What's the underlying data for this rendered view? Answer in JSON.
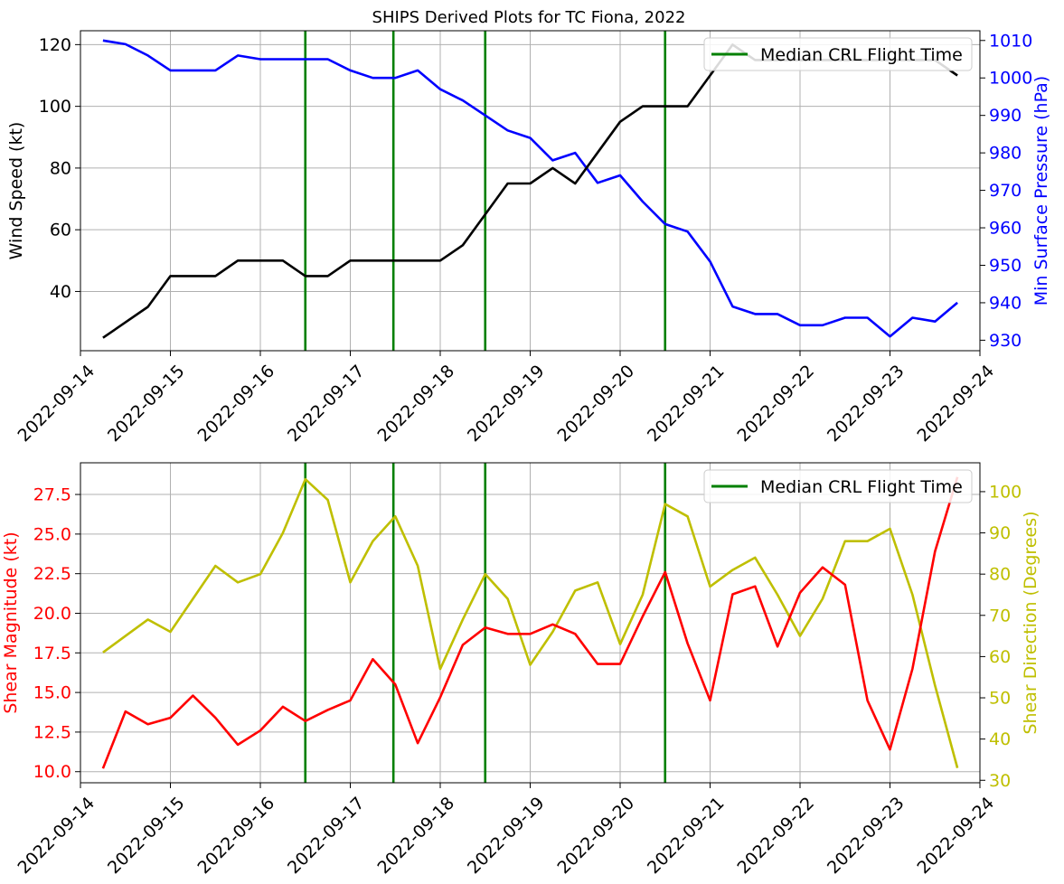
{
  "title": "SHIPS Derived Plots for TC Fiona, 2022",
  "chart_data": [
    {
      "type": "line",
      "title": "SHIPS Derived Plots for TC Fiona, 2022",
      "x_ticks": [
        "2022-09-14",
        "2022-09-15",
        "2022-09-16",
        "2022-09-17",
        "2022-09-18",
        "2022-09-19",
        "2022-09-20",
        "2022-09-21",
        "2022-09-22",
        "2022-09-23",
        "2022-09-24"
      ],
      "xlim": [
        "2022-09-14 00:00",
        "2022-09-24 00:00"
      ],
      "x": [
        "2022-09-14 06:00",
        "2022-09-14 12:00",
        "2022-09-14 18:00",
        "2022-09-15 00:00",
        "2022-09-15 06:00",
        "2022-09-15 12:00",
        "2022-09-15 18:00",
        "2022-09-16 00:00",
        "2022-09-16 06:00",
        "2022-09-16 12:00",
        "2022-09-16 18:00",
        "2022-09-17 00:00",
        "2022-09-17 06:00",
        "2022-09-17 12:00",
        "2022-09-17 18:00",
        "2022-09-18 00:00",
        "2022-09-18 06:00",
        "2022-09-18 12:00",
        "2022-09-18 18:00",
        "2022-09-19 00:00",
        "2022-09-19 06:00",
        "2022-09-19 12:00",
        "2022-09-19 18:00",
        "2022-09-20 00:00",
        "2022-09-20 06:00",
        "2022-09-20 12:00",
        "2022-09-20 18:00",
        "2022-09-21 00:00",
        "2022-09-21 06:00",
        "2022-09-21 12:00",
        "2022-09-21 18:00",
        "2022-09-22 00:00",
        "2022-09-22 06:00",
        "2022-09-22 12:00",
        "2022-09-22 18:00",
        "2022-09-23 00:00",
        "2022-09-23 06:00",
        "2022-09-23 12:00",
        "2022-09-23 18:00"
      ],
      "y_left": {
        "label": "Wind Speed (kt)",
        "ticks": [
          40,
          60,
          80,
          100,
          120
        ],
        "ylim": [
          20.8,
          124.5
        ],
        "color": "#000000",
        "values": [
          25,
          30,
          35,
          45,
          45,
          45,
          50,
          50,
          50,
          45,
          45,
          50,
          50,
          50,
          50,
          50,
          55,
          65,
          75,
          75,
          80,
          75,
          85,
          95,
          100,
          100,
          100,
          110,
          120,
          115,
          115,
          115,
          115,
          115,
          115,
          115,
          115,
          115,
          110
        ]
      },
      "y_right": {
        "label": "Min Surface Pressure (hPa)",
        "ticks": [
          930,
          940,
          950,
          960,
          970,
          980,
          990,
          1000,
          1010
        ],
        "ylim": [
          927.2,
          1012.6
        ],
        "color": "#0000ff",
        "values": [
          1010,
          1009,
          1006,
          1002,
          1002,
          1002,
          1006,
          1005,
          1005,
          1005,
          1005,
          1002,
          1000,
          1000,
          1002,
          997,
          994,
          990,
          986,
          984,
          978,
          980,
          972,
          974,
          967,
          961,
          959,
          951,
          939,
          937,
          937,
          934,
          934,
          936,
          936,
          931,
          936,
          935,
          940
        ]
      },
      "vlines": {
        "label": "Median CRL Flight Time",
        "color": "#008000",
        "x": [
          "2022-09-16 12:00",
          "2022-09-17 11:30",
          "2022-09-18 12:00",
          "2022-09-20 12:00"
        ]
      },
      "legend": {
        "location": "upper right",
        "entries": [
          "Median CRL Flight Time"
        ]
      },
      "grid": true
    },
    {
      "type": "line",
      "x_ticks": [
        "2022-09-14",
        "2022-09-15",
        "2022-09-16",
        "2022-09-17",
        "2022-09-18",
        "2022-09-19",
        "2022-09-20",
        "2022-09-21",
        "2022-09-22",
        "2022-09-23",
        "2022-09-24"
      ],
      "xlim": [
        "2022-09-14 00:00",
        "2022-09-24 00:00"
      ],
      "x": [
        "2022-09-14 06:00",
        "2022-09-14 12:00",
        "2022-09-14 18:00",
        "2022-09-15 00:00",
        "2022-09-15 06:00",
        "2022-09-15 12:00",
        "2022-09-15 18:00",
        "2022-09-16 00:00",
        "2022-09-16 06:00",
        "2022-09-16 12:00",
        "2022-09-16 18:00",
        "2022-09-17 00:00",
        "2022-09-17 06:00",
        "2022-09-17 12:00",
        "2022-09-17 18:00",
        "2022-09-18 00:00",
        "2022-09-18 06:00",
        "2022-09-18 12:00",
        "2022-09-18 18:00",
        "2022-09-19 00:00",
        "2022-09-19 06:00",
        "2022-09-19 12:00",
        "2022-09-19 18:00",
        "2022-09-20 00:00",
        "2022-09-20 06:00",
        "2022-09-20 12:00",
        "2022-09-20 18:00",
        "2022-09-21 00:00",
        "2022-09-21 06:00",
        "2022-09-21 12:00",
        "2022-09-21 18:00",
        "2022-09-22 00:00",
        "2022-09-22 06:00",
        "2022-09-22 12:00",
        "2022-09-22 18:00",
        "2022-09-23 00:00",
        "2022-09-23 06:00",
        "2022-09-23 12:00",
        "2022-09-23 18:00"
      ],
      "y_left": {
        "label": "Shear Magnitude (kt)",
        "ticks": [
          "10.0",
          "12.5",
          "15.0",
          "17.5",
          "20.0",
          "22.5",
          "25.0",
          "27.5"
        ],
        "ylim": [
          9.3,
          29.5
        ],
        "color": "#ff0000",
        "values": [
          10.2,
          13.8,
          13.0,
          13.4,
          14.8,
          13.4,
          11.7,
          12.6,
          14.1,
          13.2,
          13.9,
          14.5,
          17.1,
          15.5,
          11.8,
          14.7,
          18.0,
          19.1,
          18.7,
          18.7,
          19.3,
          18.7,
          16.8,
          16.8,
          19.8,
          22.6,
          18.1,
          14.5,
          21.2,
          21.7,
          17.9,
          21.3,
          22.9,
          21.8,
          14.5,
          11.4,
          16.5,
          23.9,
          28.6
        ]
      },
      "y_right": {
        "label": "Shear Direction (Degrees)",
        "ticks": [
          30,
          40,
          50,
          60,
          70,
          80,
          90,
          100
        ],
        "ylim": [
          29.4,
          107.0
        ],
        "color": "#bfbf00",
        "values": [
          61,
          65,
          69,
          66,
          74,
          82,
          78,
          80,
          90,
          103,
          98,
          78,
          88,
          94,
          82,
          57,
          69,
          80,
          74,
          58,
          66,
          76,
          78,
          63,
          75,
          97,
          94,
          77,
          81,
          84,
          75,
          65,
          74,
          88,
          88,
          91,
          75,
          53,
          33
        ]
      },
      "vlines": {
        "label": "Median CRL Flight Time",
        "color": "#008000",
        "x": [
          "2022-09-16 12:00",
          "2022-09-17 11:30",
          "2022-09-18 12:00",
          "2022-09-20 12:00"
        ]
      },
      "legend": {
        "location": "upper right",
        "entries": [
          "Median CRL Flight Time"
        ]
      },
      "grid": true
    }
  ]
}
